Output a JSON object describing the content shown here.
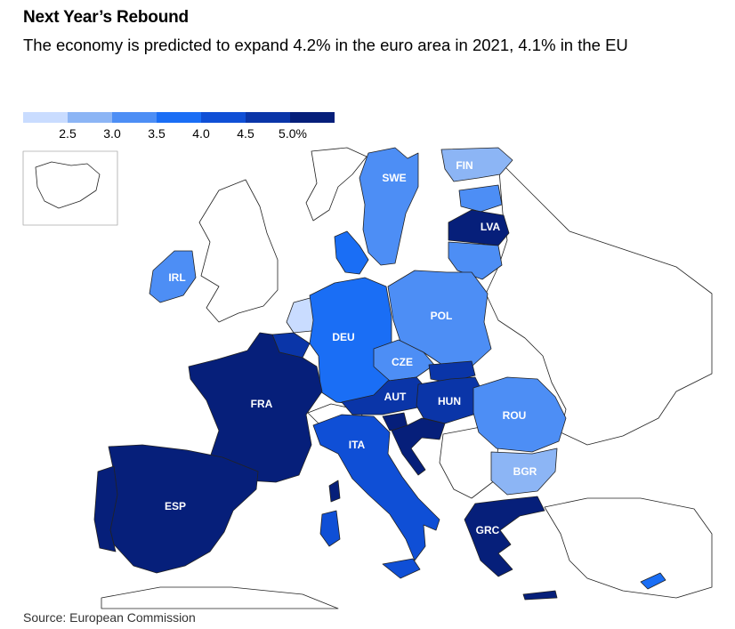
{
  "title": "Next Year’s Rebound",
  "subtitle": "The economy is predicted to expand 4.2% in the euro area in 2021, 4.1% in the EU",
  "legend": {
    "bin_colors": [
      "#c9dcff",
      "#8cb5f5",
      "#4d8ef5",
      "#1a6ef5",
      "#0f4fd6",
      "#0a35a8",
      "#061f7a"
    ],
    "ticks": [
      "2.5",
      "3.0",
      "3.5",
      "4.0",
      "4.5",
      "5.0%"
    ]
  },
  "map": {
    "countries": [
      {
        "code": "SWE",
        "label": "SWE"
      },
      {
        "code": "FIN",
        "label": "FIN"
      },
      {
        "code": "LVA",
        "label": "LVA"
      },
      {
        "code": "IRL",
        "label": "IRL"
      },
      {
        "code": "POL",
        "label": "POL"
      },
      {
        "code": "DEU",
        "label": "DEU"
      },
      {
        "code": "CZE",
        "label": "CZE"
      },
      {
        "code": "FRA",
        "label": "FRA"
      },
      {
        "code": "AUT",
        "label": "AUT"
      },
      {
        "code": "HUN",
        "label": "HUN"
      },
      {
        "code": "ROU",
        "label": "ROU"
      },
      {
        "code": "ITA",
        "label": "ITA"
      },
      {
        "code": "BGR",
        "label": "BGR"
      },
      {
        "code": "ESP",
        "label": "ESP"
      },
      {
        "code": "GRC",
        "label": "GRC"
      }
    ]
  },
  "source": "Source: European Commission"
}
